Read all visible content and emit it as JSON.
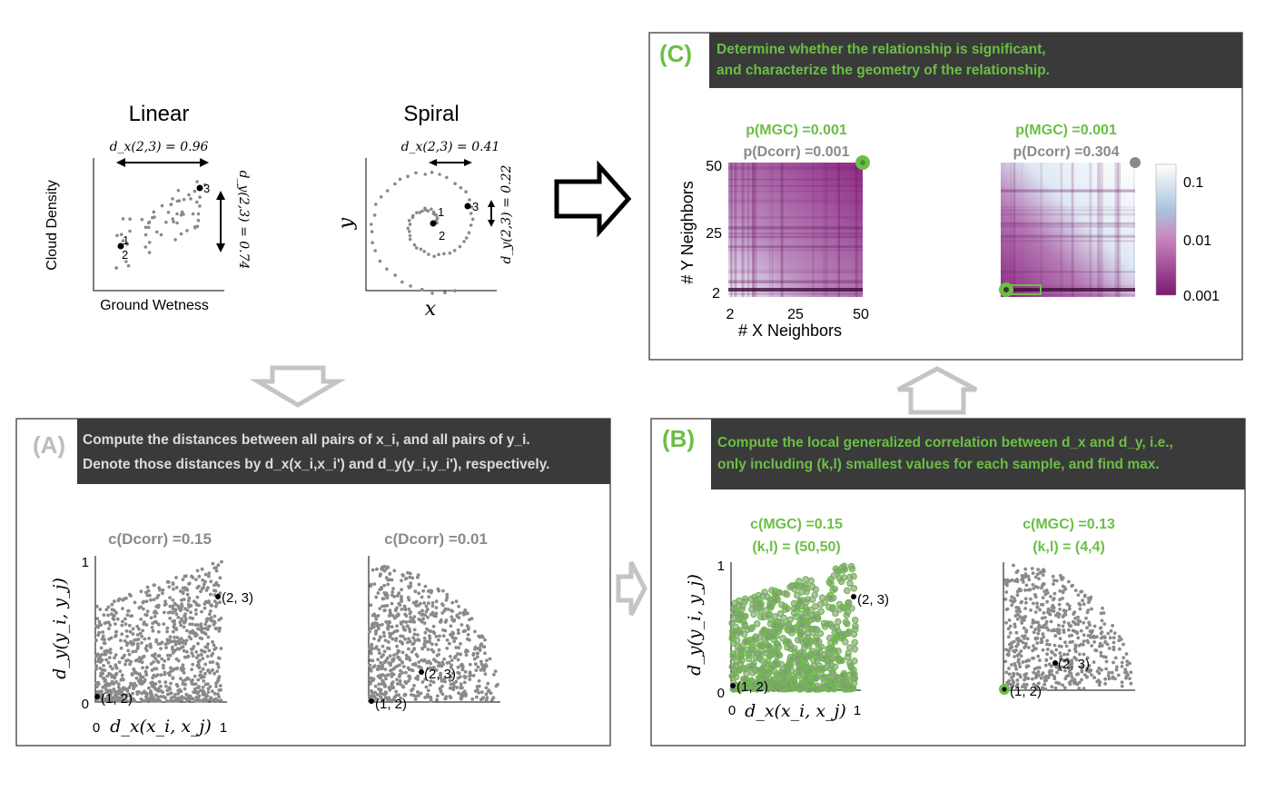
{
  "colors": {
    "green": "#6bbf45",
    "gray_dots": "#8a8a8a",
    "dark_banner": "#3a3a3a",
    "panel_a_label": "#bdbdbd",
    "arrow_gray": "#bdbdbd",
    "heat_purple": "#8a1f7a",
    "heat_white": "#f4f8fc",
    "heat_blue": "#9db9d6"
  },
  "top": {
    "linear": {
      "title": "Linear",
      "dx_label": "d_x(2,3) = 0.96",
      "dy_label": "d_y(2,3) = 0.74",
      "xlabel": "Ground Wetness",
      "ylabel": "Cloud Density",
      "pt1": "1",
      "pt2": "2",
      "pt3": "3"
    },
    "spiral": {
      "title": "Spiral",
      "dx_label": "d_x(2,3) = 0.41",
      "dy_label": "d_y(2,3) = 0.22",
      "xlabel": "x",
      "ylabel": "y",
      "pt1": "1",
      "pt2": "2",
      "pt3": "3"
    }
  },
  "panel_a": {
    "letter": "(A)",
    "line1": "Compute the distances between all pairs of x_i, and all pairs of y_i.",
    "line2": "Denote those distances by d_x(x_i,x_i') and d_y(y_i,y_i'), respectively.",
    "left_stat": "c(Dcorr) =0.15",
    "right_stat": "c(Dcorr) =0.01",
    "ylabel": "d_y(y_i, y_j)",
    "xlabel": "d_x(x_i, x_j)",
    "tick_0x": "0",
    "tick_1x": "1",
    "tick_0y": "0",
    "tick_1y": "1",
    "pt12": "(1, 2)",
    "pt23": "(2, 3)"
  },
  "panel_b": {
    "letter": "(B)",
    "line1": "Compute the local generalized correlation between d_x and d_y, i.e.,",
    "line2": "only including (k,l) smallest values for each sample, and find max.",
    "left_stat": "c(MGC) =0.15",
    "left_kl": "(k,l) = (50,50)",
    "right_stat": "c(MGC) =0.13",
    "right_kl": "(k,l) = (4,4)",
    "ylabel": "d_y(y_i, y_j)",
    "xlabel": "d_x(x_i, x_j)",
    "tick_0x": "0",
    "tick_1x": "1",
    "tick_0y": "0",
    "tick_1y": "1",
    "pt12": "(1, 2)",
    "pt23": "(2, 3)"
  },
  "panel_c": {
    "letter": "(C)",
    "line1": "Determine whether the relationship is significant,",
    "line2": "and characterize the geometry of the relationship.",
    "left_pmgc": "p(MGC) =0.001",
    "left_pdcorr": "p(Dcorr) =0.001",
    "right_pmgc": "p(MGC) =0.001",
    "right_pdcorr": "p(Dcorr) =0.304",
    "ylabel": "# Y Neighbors",
    "xlabel": "# X Neighbors",
    "ytick_50": "50",
    "ytick_25": "25",
    "ytick_2": "2",
    "xtick_2": "2",
    "xtick_25": "25",
    "xtick_50": "50",
    "cbar_01": "0.1",
    "cbar_001": "0.01",
    "cbar_0001": "0.001"
  }
}
